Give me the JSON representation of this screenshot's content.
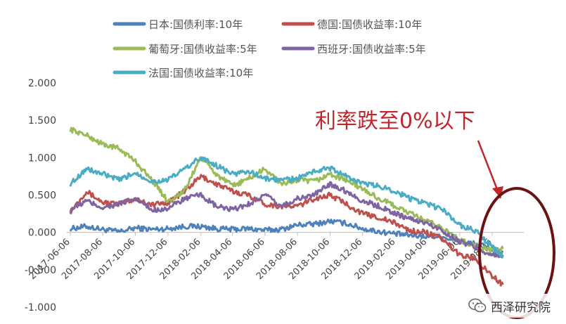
{
  "chart_data": {
    "type": "line",
    "title": "",
    "xlabel": "",
    "ylabel": "",
    "ylim": [
      -1.0,
      2.0
    ],
    "yticks": [
      "2.000",
      "1.500",
      "1.000",
      "0.500",
      "0.000",
      "-0.500",
      "-1.000"
    ],
    "yticks_values": [
      2.0,
      1.5,
      1.0,
      0.5,
      0.0,
      -0.5,
      -1.0
    ],
    "xticks": [
      "2017-06-06",
      "2017-08-06",
      "2017-10-06",
      "2017-12-06",
      "2018-02-06",
      "2018-04-06",
      "2018-06-06",
      "2018-08-06",
      "2018-10-06",
      "2018-12-06",
      "2019-02-06",
      "2019-04-06",
      "2019-06-06",
      "2019-08-06"
    ],
    "legend_placement": "top",
    "grid": false,
    "series": [
      {
        "name": "日本:国债利率:10年",
        "color": "#4f81bd",
        "x": [
          "2017-06-06",
          "2017-07-06",
          "2017-08-06",
          "2017-09-06",
          "2017-10-06",
          "2017-11-06",
          "2017-12-06",
          "2018-01-06",
          "2018-02-06",
          "2018-03-06",
          "2018-04-06",
          "2018-05-06",
          "2018-06-06",
          "2018-07-06",
          "2018-08-06",
          "2018-09-06",
          "2018-10-06",
          "2018-11-06",
          "2018-12-06",
          "2019-01-06",
          "2019-02-06",
          "2019-03-06",
          "2019-04-06",
          "2019-05-06",
          "2019-06-06",
          "2019-07-06",
          "2019-08-06",
          "2019-08-26"
        ],
        "values": [
          0.05,
          0.08,
          0.04,
          0.01,
          0.06,
          0.04,
          0.05,
          0.08,
          0.08,
          0.05,
          0.04,
          0.05,
          0.03,
          0.04,
          0.1,
          0.11,
          0.15,
          0.12,
          0.05,
          0.01,
          -0.02,
          -0.04,
          -0.05,
          -0.06,
          -0.13,
          -0.15,
          -0.22,
          -0.27
        ]
      },
      {
        "name": "德国:国债收益率:10年",
        "color": "#c0504d",
        "x": [
          "2017-06-06",
          "2017-07-06",
          "2017-08-06",
          "2017-09-06",
          "2017-10-06",
          "2017-11-06",
          "2017-12-06",
          "2018-01-06",
          "2018-02-06",
          "2018-03-06",
          "2018-04-06",
          "2018-05-06",
          "2018-06-06",
          "2018-07-06",
          "2018-08-06",
          "2018-09-06",
          "2018-10-06",
          "2018-11-06",
          "2018-12-06",
          "2019-01-06",
          "2019-02-06",
          "2019-03-06",
          "2019-04-06",
          "2019-05-06",
          "2019-06-06",
          "2019-07-06",
          "2019-08-06",
          "2019-08-26"
        ],
        "values": [
          0.28,
          0.55,
          0.4,
          0.38,
          0.45,
          0.37,
          0.4,
          0.55,
          0.75,
          0.65,
          0.55,
          0.5,
          0.38,
          0.35,
          0.35,
          0.45,
          0.5,
          0.38,
          0.25,
          0.2,
          0.12,
          0.02,
          0.0,
          -0.1,
          -0.3,
          -0.35,
          -0.58,
          -0.7
        ]
      },
      {
        "name": "葡萄牙:国债收益率:5年",
        "color": "#9bbb59",
        "x": [
          "2017-06-06",
          "2017-07-06",
          "2017-08-06",
          "2017-09-06",
          "2017-10-06",
          "2017-11-06",
          "2017-12-06",
          "2018-01-06",
          "2018-02-06",
          "2018-03-06",
          "2018-04-06",
          "2018-05-06",
          "2018-06-06",
          "2018-07-06",
          "2018-08-06",
          "2018-09-06",
          "2018-10-06",
          "2018-11-06",
          "2018-12-06",
          "2019-01-06",
          "2019-02-06",
          "2019-03-06",
          "2019-04-06",
          "2019-05-06",
          "2019-06-06",
          "2019-07-06",
          "2019-08-06",
          "2019-08-26"
        ],
        "values": [
          1.38,
          1.3,
          1.18,
          1.12,
          0.95,
          0.7,
          0.42,
          0.55,
          1.02,
          0.78,
          0.62,
          0.72,
          0.85,
          0.65,
          0.7,
          0.68,
          0.78,
          0.7,
          0.58,
          0.45,
          0.35,
          0.25,
          0.15,
          0.05,
          -0.1,
          -0.18,
          -0.25,
          -0.22
        ]
      },
      {
        "name": "西班牙:国债收益率:5年",
        "color": "#8064a2",
        "x": [
          "2017-06-06",
          "2017-07-06",
          "2017-08-06",
          "2017-09-06",
          "2017-10-06",
          "2017-11-06",
          "2017-12-06",
          "2018-01-06",
          "2018-02-06",
          "2018-03-06",
          "2018-04-06",
          "2018-05-06",
          "2018-06-06",
          "2018-07-06",
          "2018-08-06",
          "2018-09-06",
          "2018-10-06",
          "2018-11-06",
          "2018-12-06",
          "2019-01-06",
          "2019-02-06",
          "2019-03-06",
          "2019-04-06",
          "2019-05-06",
          "2019-06-06",
          "2019-07-06",
          "2019-08-06",
          "2019-08-26"
        ],
        "values": [
          0.3,
          0.42,
          0.33,
          0.38,
          0.45,
          0.3,
          0.32,
          0.45,
          0.5,
          0.35,
          0.3,
          0.38,
          0.5,
          0.35,
          0.45,
          0.5,
          0.65,
          0.55,
          0.42,
          0.35,
          0.25,
          0.18,
          0.12,
          0.02,
          -0.12,
          -0.2,
          -0.3,
          -0.3
        ]
      },
      {
        "name": "法国:国债收益率:10年",
        "color": "#4bacc6",
        "x": [
          "2017-06-06",
          "2017-07-06",
          "2017-08-06",
          "2017-09-06",
          "2017-10-06",
          "2017-11-06",
          "2017-12-06",
          "2018-01-06",
          "2018-02-06",
          "2018-03-06",
          "2018-04-06",
          "2018-05-06",
          "2018-06-06",
          "2018-07-06",
          "2018-08-06",
          "2018-09-06",
          "2018-10-06",
          "2018-11-06",
          "2018-12-06",
          "2019-01-06",
          "2019-02-06",
          "2019-03-06",
          "2019-04-06",
          "2019-05-06",
          "2019-06-06",
          "2019-07-06",
          "2019-08-06",
          "2019-08-26"
        ],
        "values": [
          0.65,
          0.85,
          0.78,
          0.7,
          0.8,
          0.68,
          0.7,
          0.85,
          1.0,
          0.9,
          0.78,
          0.82,
          0.72,
          0.7,
          0.72,
          0.82,
          0.86,
          0.75,
          0.65,
          0.62,
          0.55,
          0.45,
          0.38,
          0.3,
          0.1,
          0.02,
          -0.2,
          -0.32
        ]
      }
    ],
    "annotation": {
      "text": "利率跌至0%以下",
      "color": "#c0272d"
    }
  },
  "watermark": {
    "text": "西泽研究院",
    "icon": "wechat-icon"
  }
}
